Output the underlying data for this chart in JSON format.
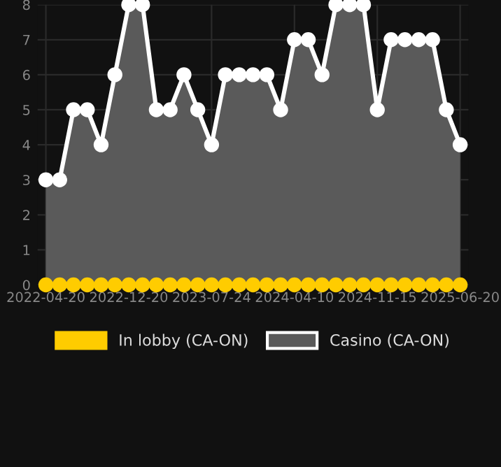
{
  "chart_data": {
    "type": "area",
    "categories": [
      "2022-04-20",
      null,
      null,
      null,
      null,
      null,
      "2022-12-20",
      null,
      null,
      null,
      null,
      null,
      "2023-07-24",
      null,
      null,
      null,
      null,
      null,
      "2024-04-10",
      null,
      null,
      null,
      null,
      null,
      "2024-11-15",
      null,
      null,
      null,
      null,
      null,
      "2025-06-20"
    ],
    "series": [
      {
        "name": "In lobby (CA-ON)",
        "type": "scatter",
        "color": "#ffcc00",
        "values": [
          0,
          0,
          0,
          0,
          0,
          0,
          0,
          0,
          0,
          0,
          0,
          0,
          0,
          0,
          0,
          0,
          0,
          0,
          0,
          0,
          0,
          0,
          0,
          0,
          0,
          0,
          0,
          0,
          0,
          0,
          0
        ]
      },
      {
        "name": "Casino (CA-ON)",
        "color": "#ffffff",
        "values": [
          3,
          3,
          5,
          5,
          4,
          6,
          8,
          8,
          5,
          5,
          6,
          5,
          4,
          6,
          6,
          6,
          6,
          5,
          7,
          7,
          6,
          8,
          8,
          8,
          5,
          7,
          7,
          7,
          7,
          5,
          4
        ]
      }
    ],
    "ylim": [
      0,
      8
    ],
    "yticks": [
      0,
      1,
      2,
      3,
      4,
      5,
      6,
      7,
      8
    ],
    "grid": true,
    "legend": "bottom",
    "marker": "circle"
  }
}
